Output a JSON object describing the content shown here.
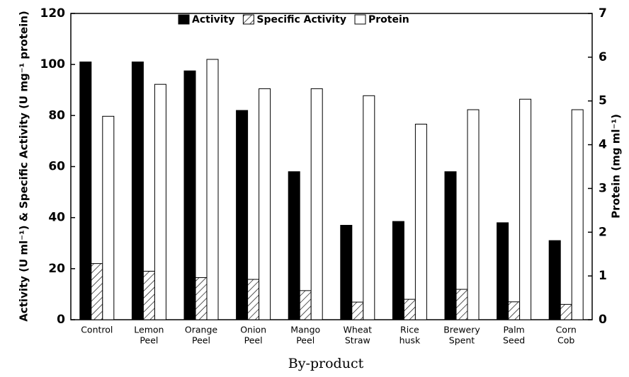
{
  "chart_data": {
    "type": "bar",
    "x_label": "By-product",
    "y_label": "Activity (U ml⁻¹) & Specific Activity (U mg⁻¹ protein)",
    "y2_label": "Protein (mg ml⁻¹)",
    "categories": [
      [
        "Control"
      ],
      [
        "Lemon",
        "Peel"
      ],
      [
        "Orange",
        "Peel"
      ],
      [
        "Onion",
        "Peel"
      ],
      [
        "Mango",
        "Peel"
      ],
      [
        "Wheat",
        "Straw"
      ],
      [
        "Rice",
        "husk"
      ],
      [
        "Brewery",
        "Spent"
      ],
      [
        "Palm",
        "Seed"
      ],
      [
        "Corn",
        "Cob"
      ]
    ],
    "series": [
      {
        "name": "Activity",
        "color": "#000000",
        "values": [
          101,
          101,
          97.5,
          82,
          58,
          37,
          38.5,
          58,
          38,
          31
        ]
      },
      {
        "name": "Specific Activity",
        "color": "#000000",
        "pattern": "hatch",
        "values": [
          22,
          19,
          16.5,
          15.8,
          11.4,
          6.9,
          8,
          11.9,
          7,
          6
        ]
      },
      {
        "name": "Protein",
        "color": "#ffffff",
        "axis": "y2",
        "values": [
          4.65,
          5.38,
          5.95,
          5.28,
          5.28,
          5.12,
          4.47,
          4.8,
          5.04,
          4.8
        ]
      }
    ],
    "ylim": [
      0,
      120
    ],
    "yticks": [
      0,
      20,
      40,
      60,
      80,
      100,
      120
    ],
    "y2lim": [
      0,
      7
    ],
    "y2ticks": [
      0,
      1,
      2,
      3,
      4,
      5,
      6,
      7
    ],
    "legend": "top"
  }
}
